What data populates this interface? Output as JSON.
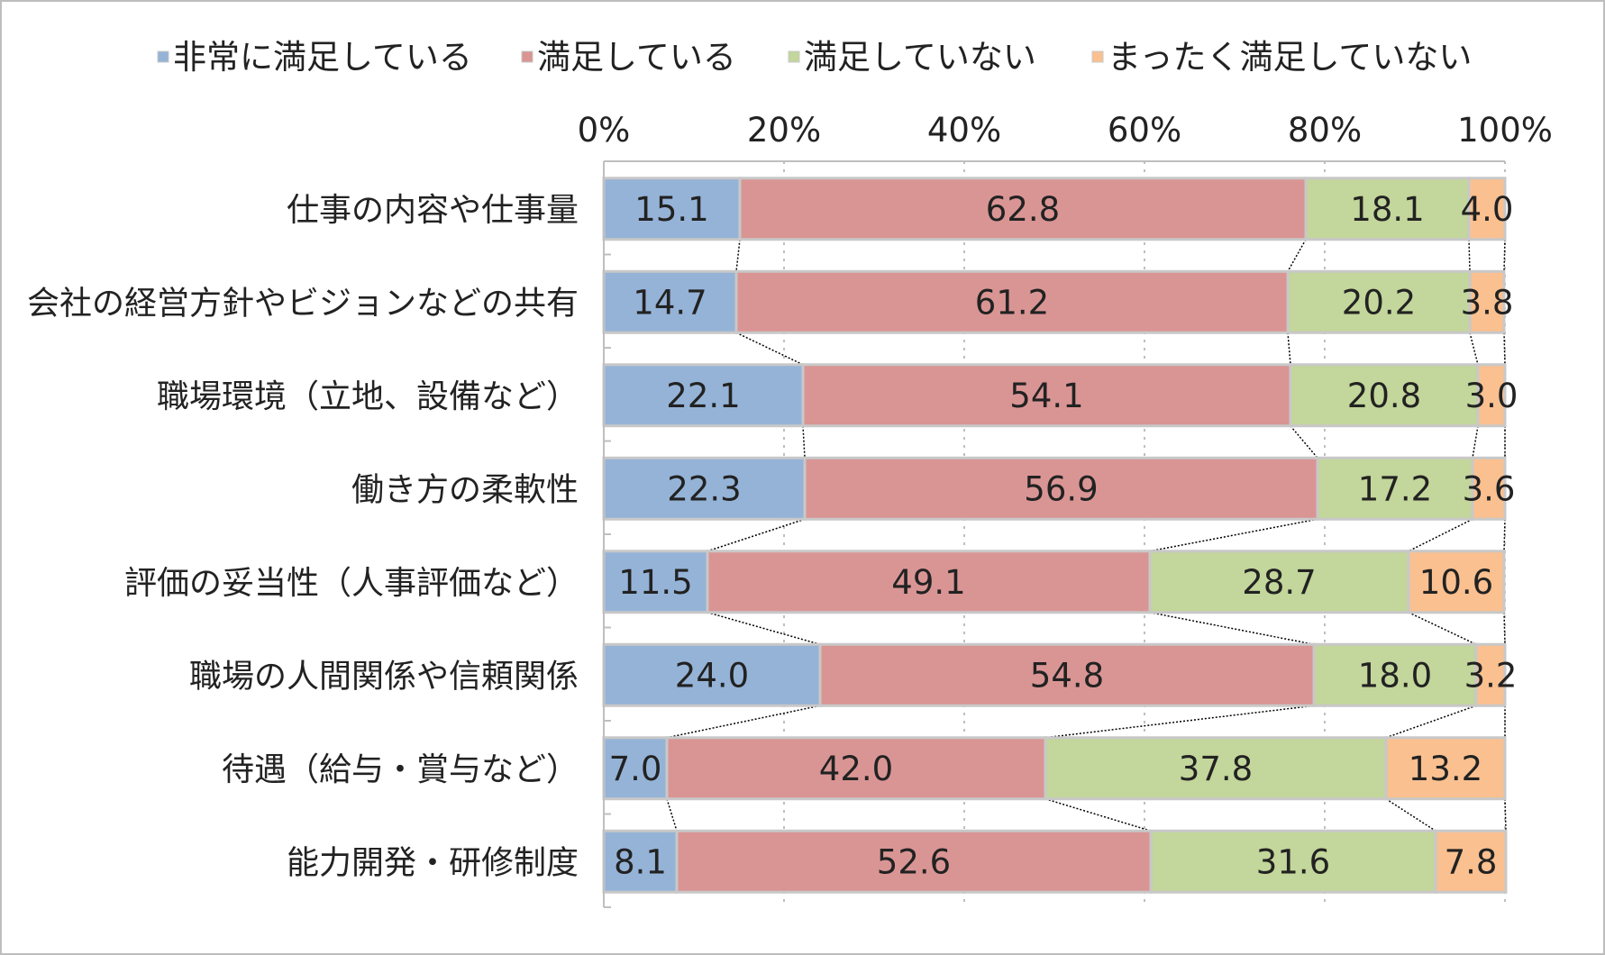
{
  "chart_data": {
    "type": "bar",
    "orientation": "horizontal",
    "stacked": "percent",
    "categories": [
      "仕事の内容や仕事量",
      "会社の経営方針やビジョンなどの共有",
      "職場環境（立地、設備など）",
      "働き方の柔軟性",
      "評価の妥当性（人事評価など）",
      "職場の人間関係や信頼関係",
      "待遇（給与・賞与など）",
      "能力開発・研修制度"
    ],
    "series": [
      {
        "name": "非常に満足している",
        "color": "#95b3d7",
        "values": [
          15.1,
          14.7,
          22.1,
          22.3,
          11.5,
          24.0,
          7.0,
          8.1
        ]
      },
      {
        "name": "満足している",
        "color": "#d99594",
        "values": [
          62.8,
          61.2,
          54.1,
          56.9,
          49.1,
          54.8,
          42.0,
          52.6
        ]
      },
      {
        "name": "満足していない",
        "color": "#c3d69b",
        "values": [
          18.1,
          20.2,
          20.8,
          17.2,
          28.7,
          18.0,
          37.8,
          31.6
        ]
      },
      {
        "name": "まったく満足していない",
        "color": "#fac090",
        "values": [
          4.0,
          3.8,
          3.0,
          3.6,
          10.6,
          3.2,
          13.2,
          7.8
        ]
      }
    ],
    "data_labels": [
      [
        "15.1",
        "14.7",
        "22.1",
        "22.3",
        "11.5",
        "24.0",
        "7.0",
        "8.1"
      ],
      [
        "62.8",
        "61.2",
        "54.1",
        "56.9",
        "49.1",
        "54.8",
        "42.0",
        "52.6"
      ],
      [
        "18.1",
        "20.2",
        "20.8",
        "17.2",
        "28.7",
        "18.0",
        "37.8",
        "31.6"
      ],
      [
        "4.0",
        "3.8",
        "3.0",
        "3.6",
        "10.6",
        "3.2",
        "13.2",
        "7.8"
      ]
    ],
    "x_ticks": [
      "0%",
      "20%",
      "40%",
      "60%",
      "80%",
      "100%"
    ],
    "xlim": [
      0,
      100
    ],
    "legend_position": "top",
    "grid": "vertical dashed",
    "series_lines": true
  }
}
